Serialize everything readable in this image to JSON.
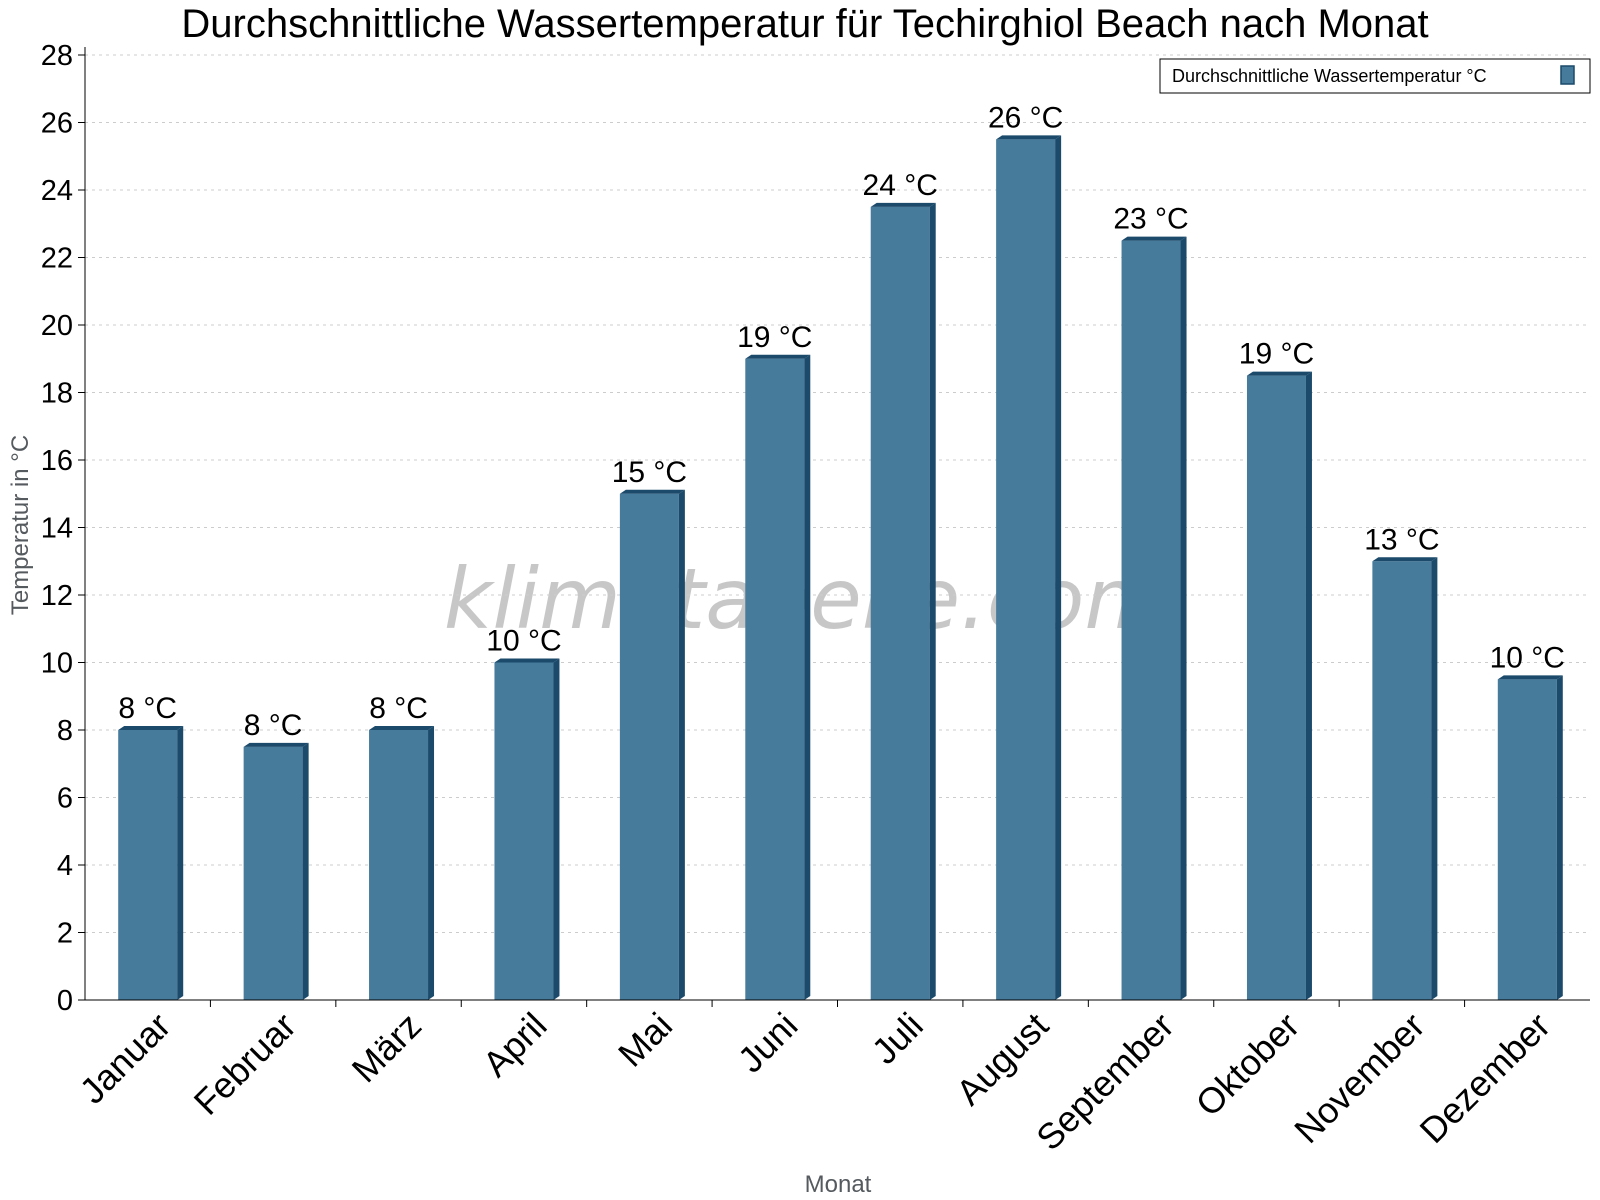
{
  "chart_data": {
    "type": "bar",
    "title": "Durchschnittliche Wassertemperatur für Techirghiol Beach nach Monat",
    "xlabel": "Monat",
    "ylabel": "Temperatur in °C",
    "categories": [
      "Januar",
      "Februar",
      "März",
      "April",
      "Mai",
      "Juni",
      "Juli",
      "August",
      "September",
      "Oktober",
      "November",
      "Dezember"
    ],
    "series": [
      {
        "name": "Durchschnittliche Wassertemperatur °C",
        "values": [
          8.0,
          7.5,
          8.0,
          10.0,
          15.0,
          19.0,
          23.5,
          25.5,
          22.5,
          18.5,
          13.0,
          9.5
        ],
        "labels": [
          "8 °C",
          "8 °C",
          "8 °C",
          "10 °C",
          "15 °C",
          "19 °C",
          "24 °C",
          "26 °C",
          "23 °C",
          "19 °C",
          "13 °C",
          "10 °C"
        ]
      }
    ],
    "ylim": [
      0,
      28
    ],
    "yticks": [
      0,
      2,
      4,
      6,
      8,
      10,
      12,
      14,
      16,
      18,
      20,
      22,
      24,
      26,
      28
    ],
    "grid": true,
    "legend_position": "top-right",
    "colors": {
      "bar": "#467b9c",
      "bar_edge": "#1b4a6b",
      "grid": "#cccccc"
    },
    "watermark": "klimatabelle.com"
  }
}
